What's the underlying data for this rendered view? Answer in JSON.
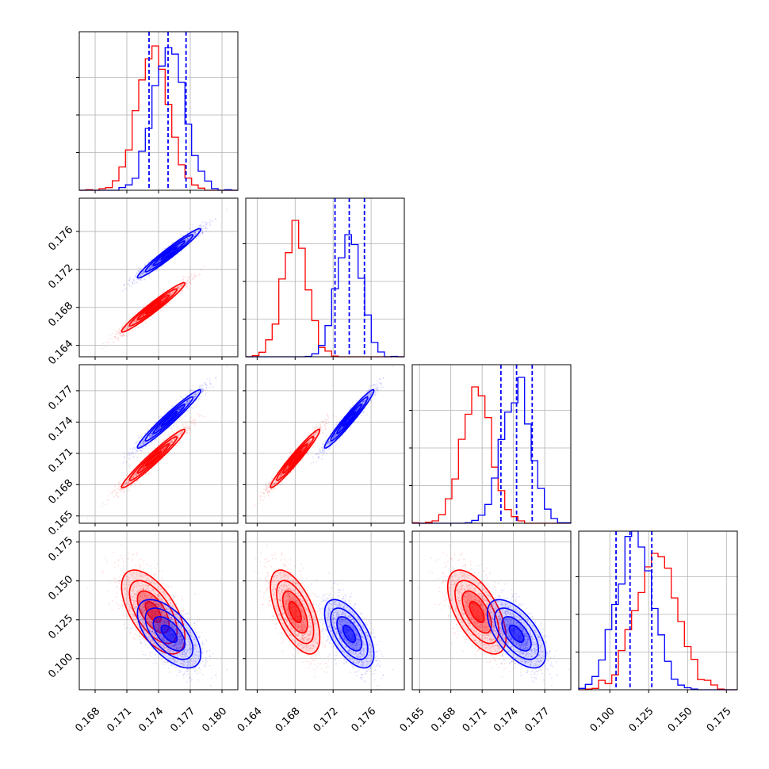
{
  "chart_data": {
    "type": "corner",
    "grid": true,
    "colors": {
      "red": "#ff0000",
      "blue": "#0000ff"
    },
    "params": [
      {
        "ticks": [
          0.168,
          0.171,
          0.174,
          0.177,
          0.18
        ],
        "tick_labels": [
          "0.168",
          "0.171",
          "0.174",
          "0.177",
          "0.180"
        ],
        "range": [
          0.1665,
          0.1815
        ]
      },
      {
        "ticks": [
          0.164,
          0.168,
          0.172,
          0.176
        ],
        "tick_labels": [
          "0.164",
          "0.168",
          "0.172",
          "0.176"
        ],
        "range": [
          0.1628,
          0.1795
        ]
      },
      {
        "ticks": [
          0.165,
          0.168,
          0.171,
          0.174,
          0.177
        ],
        "tick_labels": [
          "0.165",
          "0.168",
          "0.171",
          "0.174",
          "0.177"
        ],
        "range": [
          0.1643,
          0.1795
        ]
      },
      {
        "ticks": [
          0.1,
          0.125,
          0.15,
          0.175
        ],
        "tick_labels": [
          "0.100",
          "0.125",
          "0.150",
          "0.175"
        ],
        "range": [
          0.08,
          0.182
        ]
      }
    ],
    "series": [
      {
        "name": "",
        "color": "#ff0000",
        "mean": [
          0.1735,
          0.168,
          0.1705,
          0.13
        ],
        "sd": [
          0.0015,
          0.0013,
          0.0014,
          0.0135
        ],
        "corr": [
          [
            1,
            0.97,
            0.97,
            -0.6
          ],
          [
            0.97,
            1,
            0.97,
            -0.6
          ],
          [
            0.97,
            0.97,
            1,
            -0.6
          ],
          [
            -0.6,
            -0.6,
            -0.6,
            1
          ]
        ]
      },
      {
        "name": "",
        "color": "#0000ff",
        "mean": [
          0.175,
          0.1737,
          0.1743,
          0.116
        ],
        "sd": [
          0.0015,
          0.0013,
          0.0014,
          0.011
        ],
        "corr": [
          [
            1,
            0.97,
            0.97,
            -0.6
          ],
          [
            0.97,
            1,
            0.97,
            -0.6
          ],
          [
            0.97,
            0.97,
            1,
            -0.6
          ],
          [
            -0.6,
            -0.6,
            -0.6,
            1
          ]
        ]
      }
    ],
    "quantiles_16_50_84": [
      [
        0.1731,
        0.1749,
        0.1766
      ],
      [
        0.1722,
        0.1737,
        0.1753
      ],
      [
        0.1728,
        0.1743,
        0.1758
      ],
      [
        0.104,
        0.113,
        0.127
      ]
    ],
    "histogram_peaks_fraction_of_panel": [
      {
        "red": 0.91,
        "blue": 0.9
      },
      {
        "red": 0.86,
        "blue": 0.77
      },
      {
        "red": 0.86,
        "blue": 0.92
      },
      {
        "red": 0.86,
        "blue": 1.0
      }
    ]
  }
}
